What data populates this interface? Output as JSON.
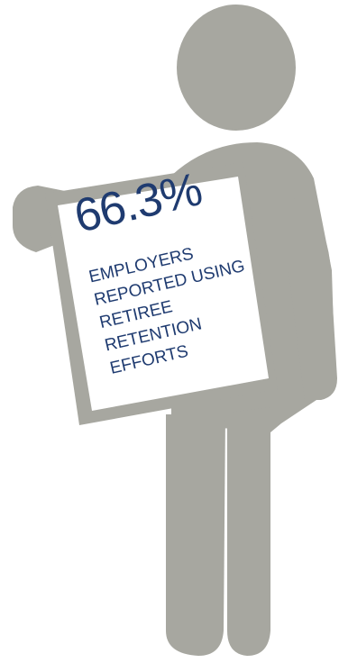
{
  "infographic": {
    "stat_value": "66.3%",
    "caption_lines": [
      "EMPLOYERS",
      "REPORTED USING",
      "RETIREE",
      "RETENTION",
      "EFFORTS"
    ]
  },
  "colors": {
    "figure": "#a7a7a0",
    "sign": "#ffffff",
    "text": "#1f3b70"
  },
  "icons": {
    "figure": "person-holding-sign-icon"
  }
}
